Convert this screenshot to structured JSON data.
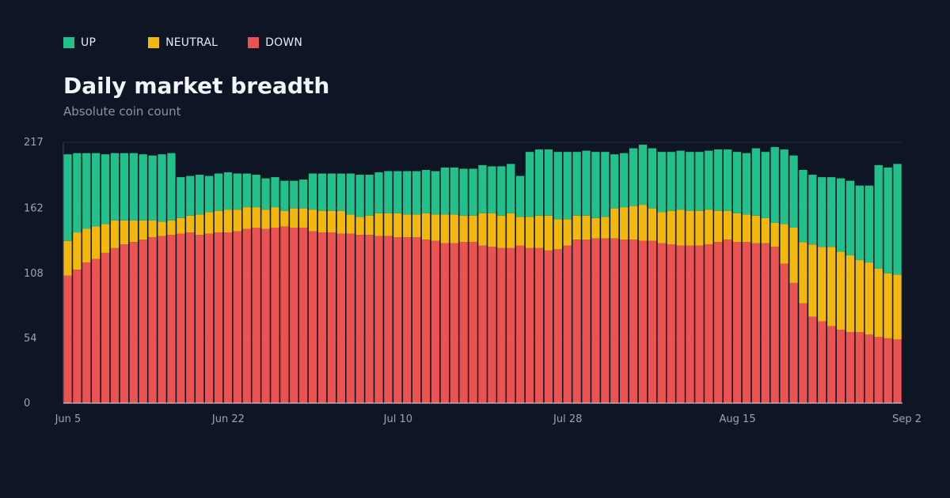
{
  "title": "Daily market breadth",
  "subtitle": "Absolute coin count",
  "legend": [
    {
      "label": "UP",
      "color": "#22c08a"
    },
    {
      "label": "NEUTRAL",
      "color": "#f2b80d"
    },
    {
      "label": "DOWN",
      "color": "#eb5252"
    }
  ],
  "chart_data": {
    "type": "bar",
    "stacked": true,
    "ylim": [
      0,
      217
    ],
    "y_ticks": [
      0,
      54,
      108,
      162,
      217
    ],
    "x_tick_labels": [
      {
        "index": 0,
        "label": "Jun 5"
      },
      {
        "index": 17,
        "label": "Jun 22"
      },
      {
        "index": 35,
        "label": "Jul 10"
      },
      {
        "index": 53,
        "label": "Jul 28"
      },
      {
        "index": 71,
        "label": "Aug 15"
      },
      {
        "index": 89,
        "label": "Sep 2"
      }
    ],
    "grid": true,
    "legend_position": "top-left",
    "series": [
      {
        "name": "DOWN",
        "color": "#eb5252",
        "values": [
          106,
          111,
          117,
          120,
          125,
          129,
          132,
          134,
          136,
          138,
          139,
          140,
          141,
          142,
          140,
          141,
          142,
          142,
          143,
          145,
          146,
          145,
          146,
          147,
          146,
          146,
          143,
          142,
          142,
          141,
          141,
          140,
          140,
          139,
          139,
          138,
          138,
          138,
          136,
          135,
          133,
          133,
          134,
          134,
          131,
          130,
          129,
          129,
          131,
          129,
          129,
          127,
          128,
          131,
          136,
          136,
          137,
          137,
          137,
          136,
          136,
          135,
          135,
          133,
          132,
          131,
          131,
          131,
          132,
          134,
          136,
          134,
          134,
          133,
          133,
          130,
          116,
          100,
          83,
          72,
          68,
          64,
          61,
          59,
          59,
          57,
          55,
          54,
          53
        ],
        "note": "approx"
      },
      {
        "name": "NEUTRAL",
        "color": "#f2b80d",
        "values": [
          29,
          31,
          28,
          27,
          24,
          23,
          20,
          18,
          16,
          14,
          12,
          12,
          13,
          14,
          17,
          18,
          18,
          19,
          18,
          18,
          17,
          16,
          17,
          13,
          16,
          16,
          18,
          18,
          18,
          19,
          16,
          15,
          16,
          19,
          19,
          20,
          19,
          19,
          22,
          22,
          24,
          24,
          22,
          22,
          27,
          28,
          27,
          29,
          24,
          26,
          27,
          29,
          25,
          22,
          20,
          20,
          17,
          18,
          25,
          27,
          28,
          30,
          27,
          26,
          28,
          30,
          29,
          29,
          29,
          26,
          24,
          24,
          23,
          23,
          21,
          20,
          33,
          46,
          51,
          60,
          62,
          66,
          65,
          64,
          60,
          60,
          57,
          54,
          54
        ]
      },
      {
        "name": "UP",
        "color": "#22c08a",
        "values": [
          72,
          66,
          63,
          61,
          58,
          56,
          56,
          56,
          55,
          54,
          56,
          56,
          34,
          33,
          33,
          30,
          31,
          31,
          30,
          28,
          27,
          26,
          25,
          25,
          23,
          24,
          30,
          31,
          31,
          31,
          34,
          35,
          34,
          34,
          35,
          35,
          36,
          36,
          36,
          36,
          39,
          39,
          39,
          39,
          40,
          39,
          41,
          41,
          34,
          54,
          55,
          55,
          56,
          56,
          53,
          54,
          55,
          54,
          45,
          45,
          48,
          50,
          50,
          50,
          49,
          49,
          49,
          49,
          49,
          51,
          51,
          51,
          51,
          56,
          55,
          63,
          62,
          60,
          60,
          58,
          58,
          58,
          61,
          62,
          62,
          64,
          86,
          88,
          92
        ]
      }
    ]
  }
}
